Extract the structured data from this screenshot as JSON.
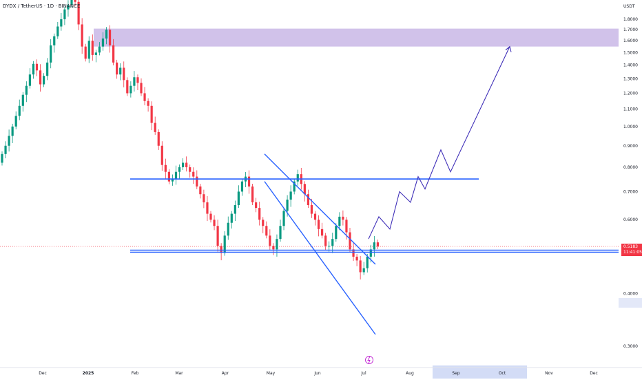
{
  "header": {
    "title": "DYDX / TetherUS · 1D · BINANCE",
    "currency": "USDT"
  },
  "last_price": {
    "value": "0.5183",
    "countdown": "11:41:05"
  },
  "colors": {
    "up": "#089981",
    "down": "#f23645",
    "lines": "#2962ff",
    "path": "#3f2fb8",
    "zone": "#c9b7e6",
    "highlight": "#d3dcf6"
  },
  "chart_data": {
    "type": "candlestick",
    "title": "DYDX / TetherUS · 1D · BINANCE",
    "ylim": [
      0.27,
      1.9
    ],
    "y_scale": "log",
    "y_ticks": [
      "1.8000",
      "1.7000",
      "1.6000",
      "1.5000",
      "1.4000",
      "1.3000",
      "1.2000",
      "1.1000",
      "1.0000",
      "0.9000",
      "0.8000",
      "0.7000",
      "0.6000",
      "0.5000",
      "0.4000",
      "0.3000"
    ],
    "x_ticks": [
      "Dec",
      "2025",
      "Feb",
      "Mar",
      "Apr",
      "May",
      "Jun",
      "Jul",
      "Aug",
      "Sep",
      "Oct",
      "Nov",
      "Dec"
    ],
    "x_ticks_highlighted": [
      "Sep",
      "Oct"
    ],
    "candles_close": [
      0.86,
      0.9,
      0.95,
      1.0,
      1.06,
      1.12,
      1.19,
      1.25,
      1.33,
      1.41,
      1.36,
      1.26,
      1.32,
      1.42,
      1.56,
      1.64,
      1.73,
      1.8,
      1.9,
      1.95,
      2.1,
      1.98,
      1.75,
      1.55,
      1.45,
      1.6,
      1.48,
      1.5,
      1.55,
      1.62,
      1.7,
      1.56,
      1.42,
      1.33,
      1.38,
      1.29,
      1.2,
      1.25,
      1.31,
      1.27,
      1.2,
      1.15,
      1.12,
      1.02,
      0.97,
      0.9,
      0.81,
      0.78,
      0.74,
      0.75,
      0.78,
      0.8,
      0.82,
      0.8,
      0.78,
      0.76,
      0.72,
      0.69,
      0.66,
      0.62,
      0.6,
      0.58,
      0.52,
      0.5,
      0.55,
      0.59,
      0.62,
      0.65,
      0.7,
      0.74,
      0.76,
      0.72,
      0.66,
      0.64,
      0.6,
      0.58,
      0.55,
      0.52,
      0.51,
      0.54,
      0.58,
      0.63,
      0.67,
      0.7,
      0.74,
      0.77,
      0.73,
      0.69,
      0.65,
      0.62,
      0.6,
      0.57,
      0.55,
      0.52,
      0.52,
      0.54,
      0.58,
      0.61,
      0.6,
      0.56,
      0.51,
      0.49,
      0.48,
      0.45,
      0.46,
      0.49,
      0.51,
      0.53,
      0.5183
    ],
    "resistance": 0.75,
    "support": 0.505,
    "supply_zone": [
      1.55,
      1.71
    ],
    "channel_upper": [
      {
        "date": "May",
        "value": 0.86
      },
      {
        "date": "Jul",
        "value": 0.47
      }
    ],
    "channel_lower": [
      {
        "date": "May",
        "value": 0.74
      },
      {
        "date": "Jul",
        "value": 0.32
      }
    ],
    "projection_path": [
      0.54,
      0.61,
      0.57,
      0.7,
      0.66,
      0.76,
      0.71,
      0.88,
      0.78,
      1.55
    ]
  }
}
